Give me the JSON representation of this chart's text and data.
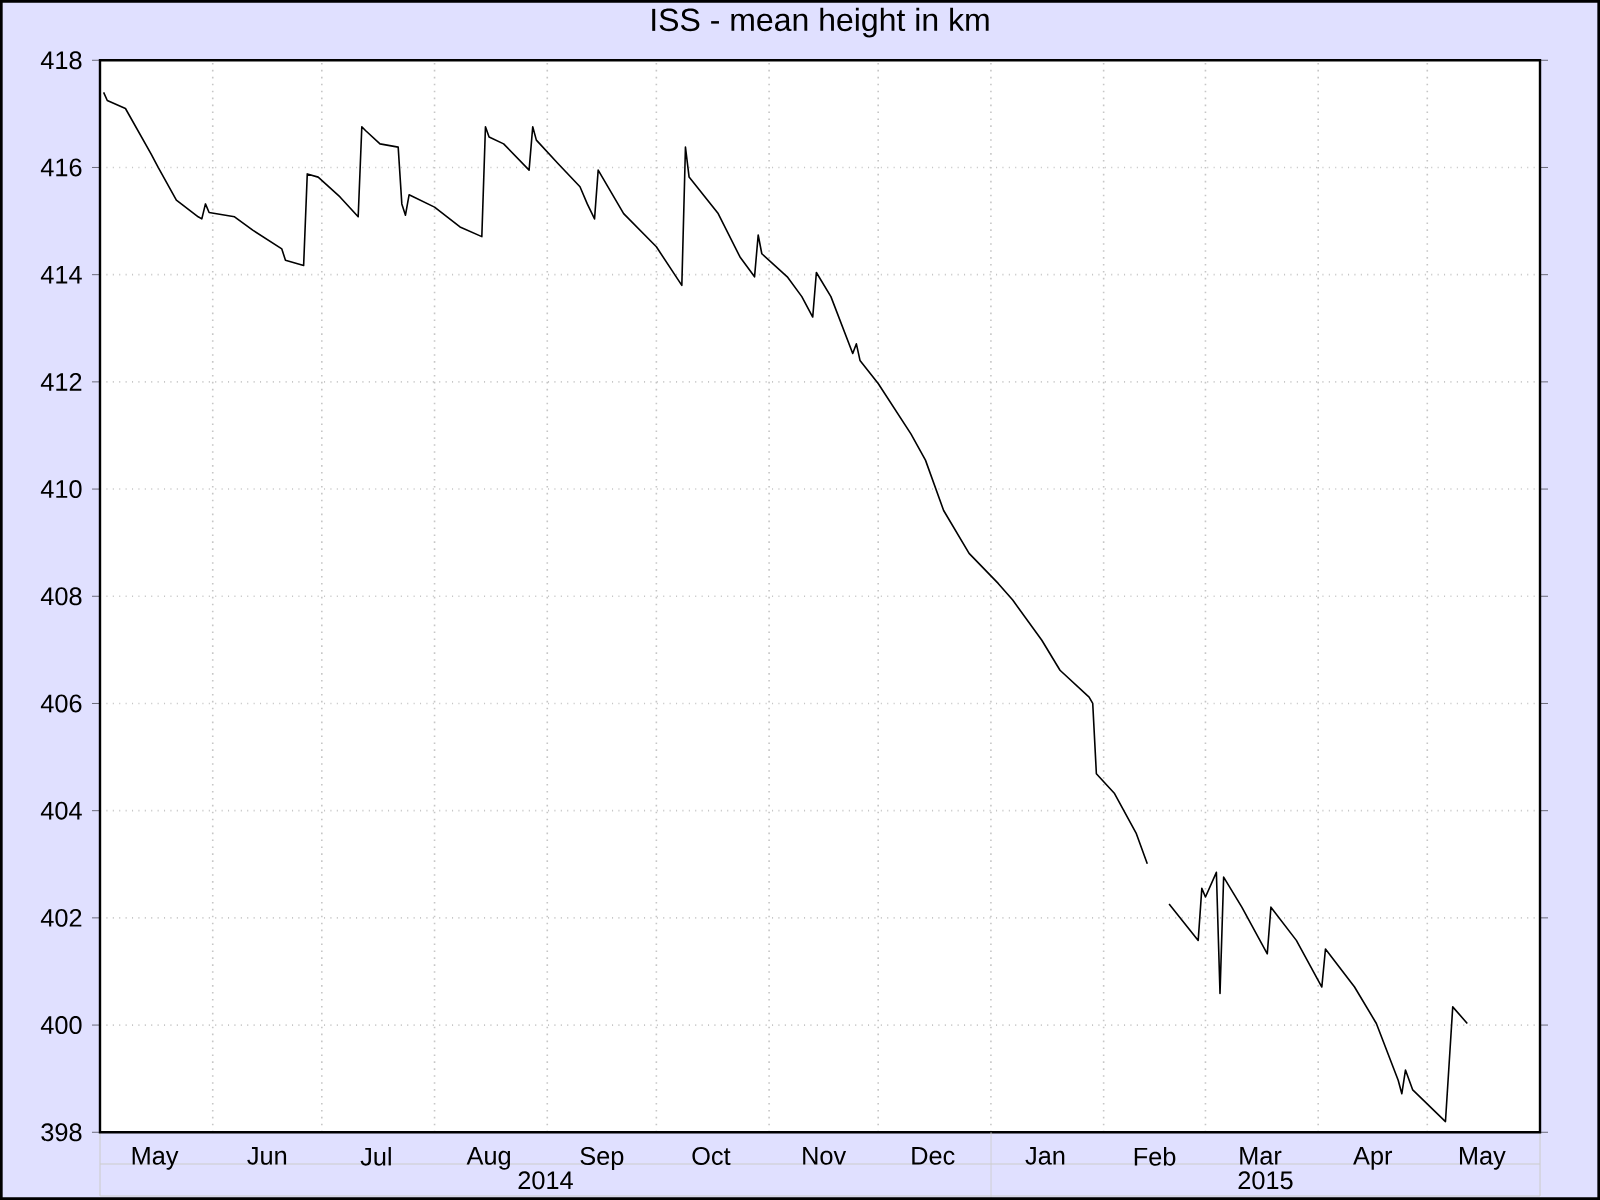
{
  "chart_data": {
    "type": "line",
    "title": "ISS - mean height in km",
    "xlim": [
      "2014-05-01",
      "2015-06-01"
    ],
    "ylim": [
      398,
      418
    ],
    "yticks": [
      398,
      400,
      402,
      404,
      406,
      408,
      410,
      412,
      414,
      416,
      418
    ],
    "xticks": [
      {
        "value": "2014-05-16",
        "label": "May"
      },
      {
        "value": "2014-06-01",
        "label": null
      },
      {
        "value": "2014-06-16",
        "label": "Jun"
      },
      {
        "value": "2014-07-01",
        "label": null
      },
      {
        "value": "2014-07-16",
        "label": "Jul"
      },
      {
        "value": "2014-08-01",
        "label": null
      },
      {
        "value": "2014-08-16",
        "label": "Aug"
      },
      {
        "value": "2014-09-01",
        "label": null
      },
      {
        "value": "2014-09-16",
        "label": "Sep"
      },
      {
        "value": "2014-10-01",
        "label": null
      },
      {
        "value": "2014-10-16",
        "label": "Oct"
      },
      {
        "value": "2014-11-01",
        "label": null
      },
      {
        "value": "2014-11-16",
        "label": "Nov"
      },
      {
        "value": "2014-12-01",
        "label": null
      },
      {
        "value": "2014-12-16",
        "label": "Dec"
      },
      {
        "value": "2015-01-01",
        "label": null
      },
      {
        "value": "2015-01-16",
        "label": "Jan"
      },
      {
        "value": "2015-02-01",
        "label": null
      },
      {
        "value": "2015-02-15",
        "label": "Feb"
      },
      {
        "value": "2015-03-01",
        "label": null
      },
      {
        "value": "2015-03-16",
        "label": "Mar"
      },
      {
        "value": "2015-04-01",
        "label": null
      },
      {
        "value": "2015-04-16",
        "label": "Apr"
      },
      {
        "value": "2015-05-01",
        "label": null
      },
      {
        "value": "2015-05-16",
        "label": "May"
      }
    ],
    "grid": true,
    "annotations": [
      "2014",
      "2015"
    ],
    "x": [
      "2014-05-02",
      "2014-05-03",
      "2014-05-08",
      "2014-05-15",
      "2014-05-17",
      "2014-05-22",
      "2014-05-28",
      "2014-05-29",
      "2014-05-30",
      "2014-05-31",
      "2014-06-07",
      "2014-06-12",
      "2014-06-20",
      "2014-06-21",
      "2014-06-26",
      "2014-06-27",
      "2014-06-30",
      "2014-07-06",
      "2014-07-11",
      "2014-07-12",
      "2014-07-13",
      "2014-07-17",
      "2014-07-22",
      "2014-07-23",
      "2014-07-24",
      "2014-07-25",
      "2014-08-01",
      "2014-08-08",
      "2014-08-14",
      "2014-08-15",
      "2014-08-16",
      "2014-08-20",
      "2014-08-27",
      "2014-08-28",
      "2014-08-29",
      "2014-09-04",
      "2014-09-10",
      "2014-09-12",
      "2014-09-14",
      "2014-09-15",
      "2014-09-22",
      "2014-10-01",
      "2014-10-08",
      "2014-10-09",
      "2014-10-10",
      "2014-10-18",
      "2014-10-24",
      "2014-10-28",
      "2014-10-29",
      "2014-10-30",
      "2014-11-06",
      "2014-11-10",
      "2014-11-13",
      "2014-11-14",
      "2014-11-18",
      "2014-11-24",
      "2014-11-25",
      "2014-11-26",
      "2014-12-01",
      "2014-12-10",
      "2014-12-14",
      "2014-12-19",
      "2014-12-26",
      "2015-01-03",
      "2015-01-07",
      "2015-01-15",
      "2015-01-20",
      "2015-01-28",
      "2015-01-29",
      "2015-01-30",
      "2015-02-04",
      "2015-02-10",
      "2015-02-13",
      "2015-02-16",
      "2015-02-19",
      "2015-02-27",
      "2015-02-28",
      "2015-03-01",
      "2015-03-04",
      "2015-03-05",
      "2015-03-06",
      "2015-03-11",
      "2015-03-18",
      "2015-03-19",
      "2015-03-26",
      "2015-04-02",
      "2015-04-03",
      "2015-04-11",
      "2015-04-17",
      "2015-04-23",
      "2015-04-24",
      "2015-04-25",
      "2015-04-27",
      "2015-05-06",
      "2015-05-08",
      "2015-05-12"
    ],
    "series": [
      {
        "color": "#000000",
        "values": [
          417.4,
          417.25,
          417.1,
          416.26,
          416.0,
          415.39,
          415.08,
          415.04,
          415.32,
          415.16,
          415.08,
          414.83,
          414.48,
          414.27,
          414.17,
          415.88,
          415.82,
          415.45,
          415.08,
          416.76,
          416.69,
          416.44,
          416.38,
          415.32,
          415.11,
          415.49,
          415.26,
          414.89,
          414.71,
          416.76,
          416.57,
          416.44,
          415.95,
          416.76,
          416.51,
          416.07,
          415.64,
          415.32,
          415.04,
          415.95,
          415.14,
          414.52,
          413.8,
          416.38,
          415.82,
          415.14,
          414.33,
          413.96,
          414.74,
          414.39,
          413.96,
          413.59,
          413.21,
          414.04,
          413.59,
          412.53,
          412.71,
          412.4,
          411.97,
          411.03,
          410.54,
          409.6,
          408.8,
          408.24,
          407.93,
          407.18,
          406.62,
          406.12,
          406.0,
          404.69,
          404.32,
          403.57,
          403.01,
          null,
          402.26,
          401.58,
          402.55,
          402.39,
          402.85,
          400.59,
          402.76,
          402.2,
          401.33,
          402.2,
          401.58,
          400.71,
          401.42,
          400.71,
          400.03,
          398.97,
          398.72,
          399.16,
          398.79,
          398.2,
          400.34,
          400.03
        ]
      }
    ]
  }
}
